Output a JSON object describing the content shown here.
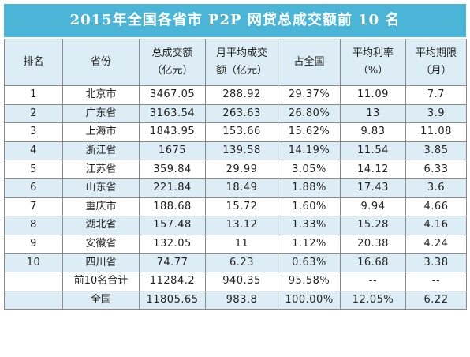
{
  "title": "2015年全国各省市 P2P 网贷总成交额前 10 名",
  "columns": [
    {
      "line1": "排名",
      "line2": ""
    },
    {
      "line1": "省份",
      "line2": ""
    },
    {
      "line1": "总成交额",
      "line2": "（亿元）"
    },
    {
      "line1": "月平均成交",
      "line2": "额（亿元）"
    },
    {
      "line1": "占全国",
      "line2": ""
    },
    {
      "line1": "平均利率",
      "line2": "（%）"
    },
    {
      "line1": "平均期限",
      "line2": "（月）"
    }
  ],
  "rows": [
    {
      "rank": "1",
      "province": "北京市",
      "total": "3467.05",
      "monthly": "288.92",
      "share": "29.37%",
      "rate": "11.09",
      "term": "7.7"
    },
    {
      "rank": "2",
      "province": "广东省",
      "total": "3163.54",
      "monthly": "263.63",
      "share": "26.80%",
      "rate": "13",
      "term": "3.9"
    },
    {
      "rank": "3",
      "province": "上海市",
      "total": "1843.95",
      "monthly": "153.66",
      "share": "15.62%",
      "rate": "9.83",
      "term": "11.08"
    },
    {
      "rank": "4",
      "province": "浙江省",
      "total": "1675",
      "monthly": "139.58",
      "share": "14.19%",
      "rate": "11.54",
      "term": "3.85"
    },
    {
      "rank": "5",
      "province": "江苏省",
      "total": "359.84",
      "monthly": "29.99",
      "share": "3.05%",
      "rate": "14.12",
      "term": "6.33"
    },
    {
      "rank": "6",
      "province": "山东省",
      "total": "221.84",
      "monthly": "18.49",
      "share": "1.88%",
      "rate": "17.43",
      "term": "3.6"
    },
    {
      "rank": "7",
      "province": "重庆市",
      "total": "188.68",
      "monthly": "15.72",
      "share": "1.60%",
      "rate": "9.94",
      "term": "4.66"
    },
    {
      "rank": "8",
      "province": "湖北省",
      "total": "157.48",
      "monthly": "13.12",
      "share": "1.33%",
      "rate": "15.28",
      "term": "4.16"
    },
    {
      "rank": "9",
      "province": "安徽省",
      "total": "132.05",
      "monthly": "11",
      "share": "1.12%",
      "rate": "20.38",
      "term": "4.24"
    },
    {
      "rank": "10",
      "province": "四川省",
      "total": "74.77",
      "monthly": "6.23",
      "share": "0.63%",
      "rate": "16.68",
      "term": "3.38"
    },
    {
      "rank": "",
      "province": "前10名合计",
      "total": "11284.2",
      "monthly": "940.35",
      "share": "95.58%",
      "rate": "--",
      "term": "--"
    },
    {
      "rank": "",
      "province": "全国",
      "total": "11805.65",
      "monthly": "983.8",
      "share": "100.00%",
      "rate": "12.05%",
      "term": "6.22"
    }
  ],
  "colors": {
    "title_bg": "#4bb5d8",
    "header_bg": "#dcedf5",
    "stripe_bg": "#dcedf5",
    "border": "#8a8a8a"
  }
}
